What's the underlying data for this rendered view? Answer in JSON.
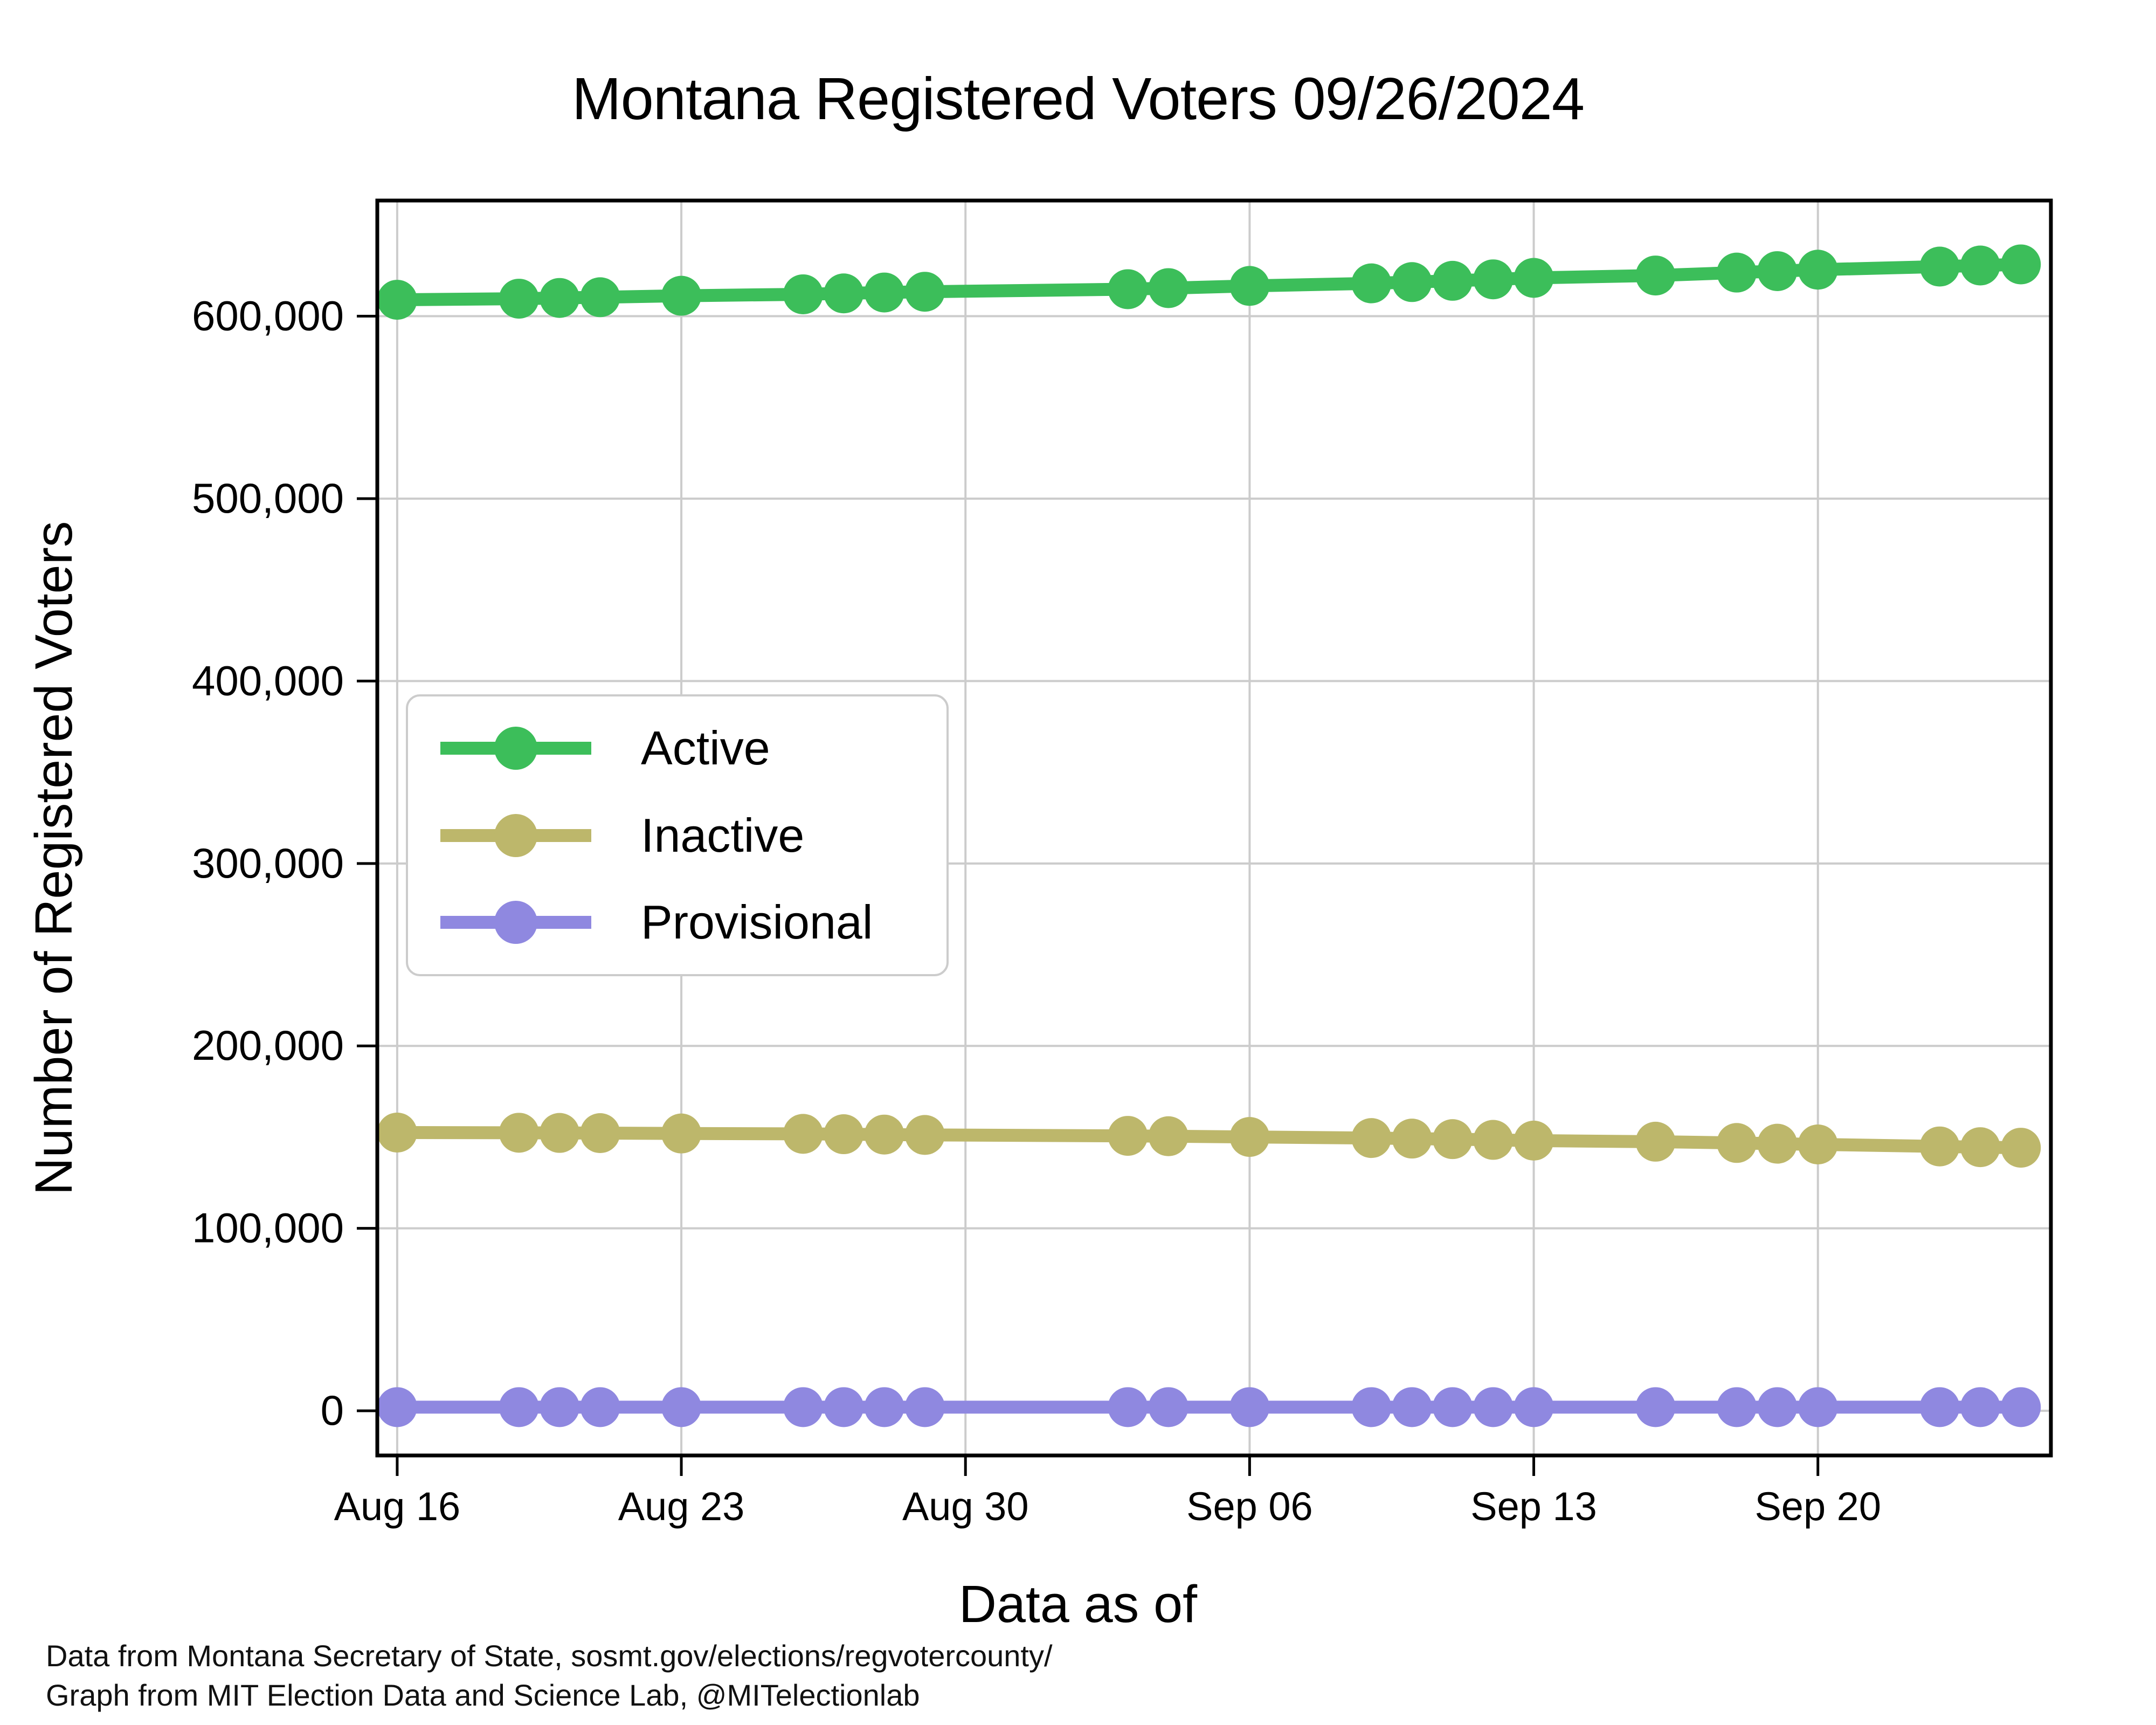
{
  "title": "Montana Registered Voters 09/26/2024",
  "footer": {
    "line1": "Data from Montana Secretary of State, sosmt.gov/elections/regvotercounty/",
    "line2": "Graph from MIT Election Data and Science Lab, @MITelectionlab"
  },
  "chart_data": {
    "type": "line",
    "title": "Montana Registered Voters 09/26/2024",
    "xlabel": "Data as of",
    "ylabel": "Number of Registered Voters",
    "grid": true,
    "legend_position": "center left",
    "x_tick_labels": [
      "Aug 16",
      "Aug 23",
      "Aug 30",
      "Sep 06",
      "Sep 13",
      "Sep 20"
    ],
    "x_tick_days": [
      0,
      7,
      14,
      21,
      28,
      35
    ],
    "y_tick_labels": [
      "0",
      "100,000",
      "200,000",
      "300,000",
      "400,000",
      "500,000",
      "600,000"
    ],
    "y_ticks": [
      0,
      100000,
      200000,
      300000,
      400000,
      500000,
      600000
    ],
    "xlim_days": [
      -0.49,
      40.74
    ],
    "ylim": [
      -24500,
      663400
    ],
    "dates": [
      "Aug 16",
      "Aug 19",
      "Aug 20",
      "Aug 21",
      "Aug 23",
      "Aug 26",
      "Aug 27",
      "Aug 28",
      "Aug 29",
      "Sep 03",
      "Sep 04",
      "Sep 06",
      "Sep 09",
      "Sep 10",
      "Sep 11",
      "Sep 12",
      "Sep 13",
      "Sep 16",
      "Sep 18",
      "Sep 19",
      "Sep 20",
      "Sep 23",
      "Sep 24",
      "Sep 25"
    ],
    "days": [
      0,
      3,
      4,
      5,
      7,
      10,
      11,
      12,
      13,
      18,
      19,
      21,
      24,
      25,
      26,
      27,
      28,
      31,
      33,
      34,
      35,
      38,
      39,
      40
    ],
    "series": [
      {
        "name": "Active",
        "color": "#3cbe5a",
        "values": [
          609000,
          609600,
          610000,
          610400,
          611200,
          612000,
          612500,
          613000,
          613400,
          614800,
          615400,
          616600,
          618000,
          618700,
          619400,
          620200,
          621000,
          622300,
          623900,
          624700,
          625500,
          627200,
          627800,
          628400
        ]
      },
      {
        "name": "Inactive",
        "color": "#bdb76b",
        "values": [
          152500,
          152400,
          152300,
          152200,
          152000,
          151800,
          151600,
          151400,
          151200,
          150700,
          150500,
          150100,
          149500,
          149200,
          148900,
          148500,
          148100,
          147500,
          146800,
          146400,
          146000,
          144900,
          144500,
          144200
        ]
      },
      {
        "name": "Provisional",
        "color": "#8f88e0",
        "values": [
          2000,
          2000,
          2000,
          2000,
          2000,
          2000,
          2000,
          2000,
          2000,
          2000,
          2000,
          2000,
          2000,
          2000,
          2000,
          2000,
          2000,
          2000,
          2000,
          2000,
          2000,
          2000,
          2000,
          2000
        ]
      }
    ],
    "colors": {
      "grid": "#cccccc",
      "spine": "#000000"
    }
  }
}
